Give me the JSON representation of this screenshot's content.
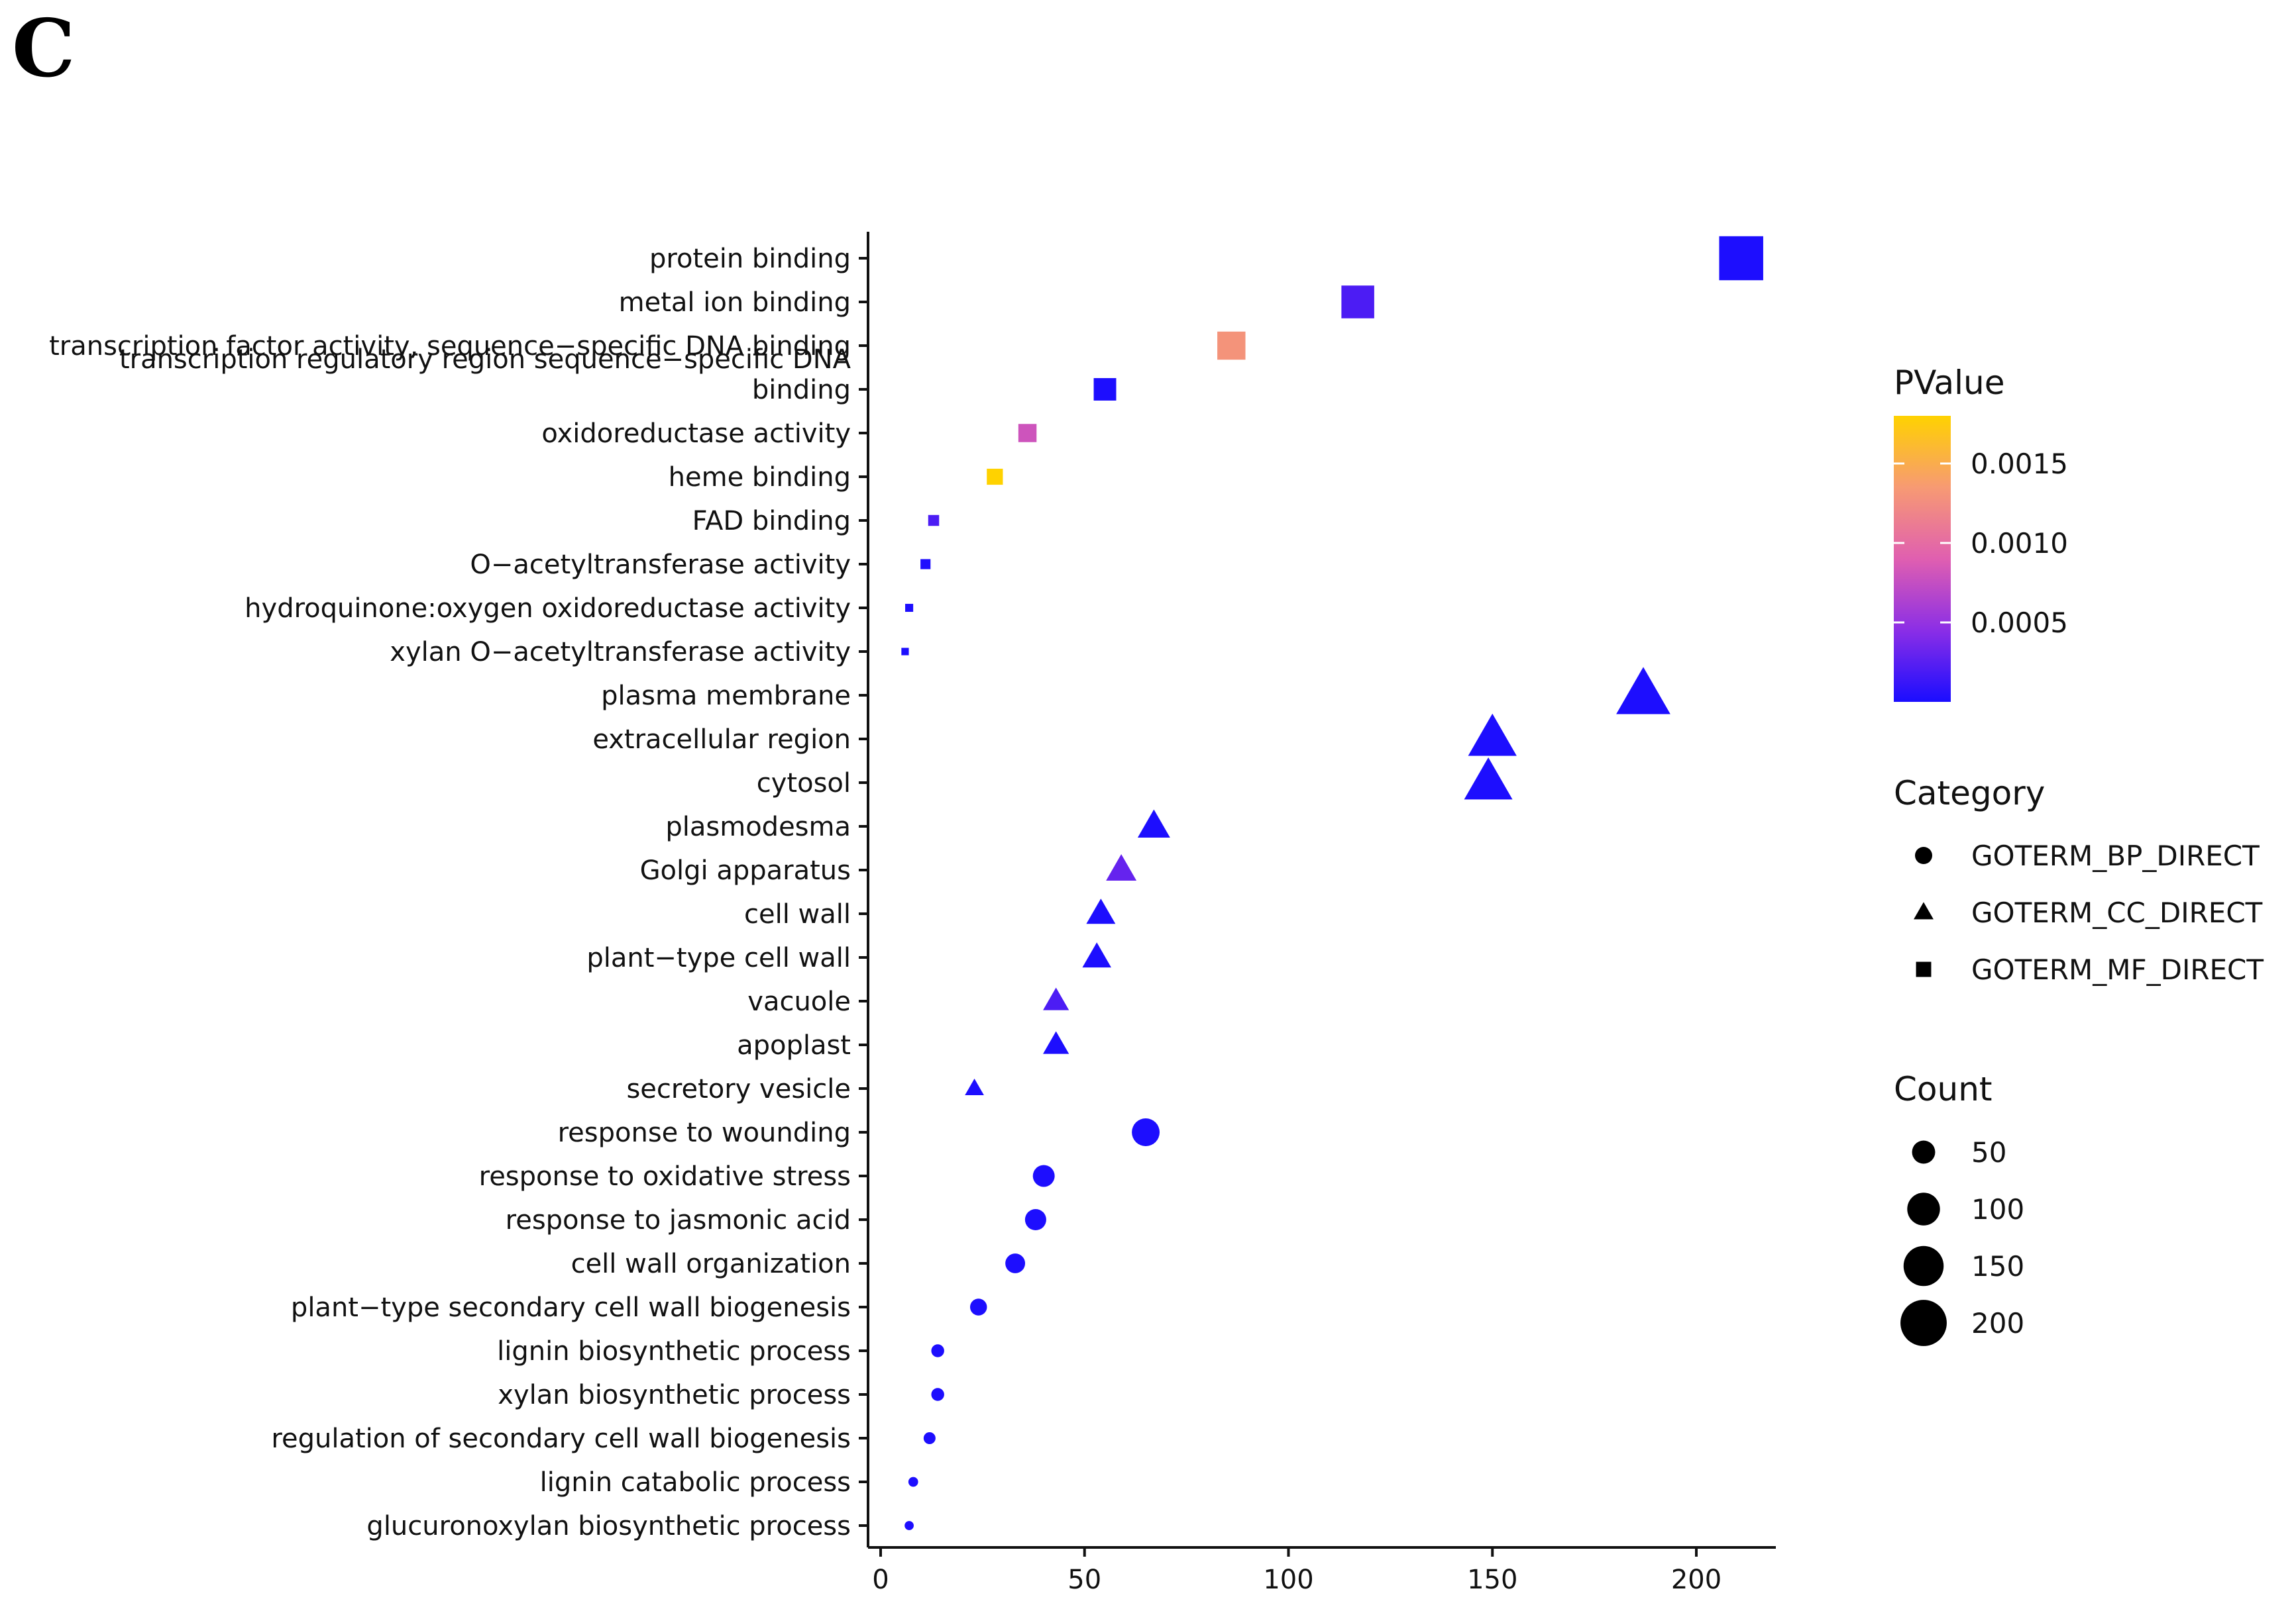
{
  "panel_label": "C",
  "chart_data": {
    "type": "scatter",
    "title": "",
    "xlabel": "",
    "ylabel": "",
    "xlim": [
      -2,
      220
    ],
    "xticks": [
      0,
      50,
      100,
      150,
      200
    ],
    "grid": false,
    "colorscale": {
      "title": "PValue",
      "min": 0,
      "max": 0.0018,
      "ticks": [
        0.0005,
        0.001,
        0.0015
      ],
      "tick_labels": [
        "0.0005",
        "0.0010",
        "0.0015"
      ],
      "colors": [
        "#1a0dff",
        "#8b2ee6",
        "#e05fb0",
        "#f79a73",
        "#ffd200"
      ]
    },
    "category_legend": {
      "title": "Category",
      "items": [
        {
          "label": "GOTERM_BP_DIRECT",
          "shape": "circle"
        },
        {
          "label": "GOTERM_CC_DIRECT",
          "shape": "triangle"
        },
        {
          "label": "GOTERM_MF_DIRECT",
          "shape": "square"
        }
      ]
    },
    "count_legend": {
      "title": "Count",
      "values": [
        50,
        100,
        150,
        200
      ],
      "labels": [
        "50",
        "100",
        "150",
        "200"
      ]
    },
    "points": [
      {
        "term": "protein binding",
        "count": 211,
        "pvalue": 1e-05,
        "category": "GOTERM_MF_DIRECT"
      },
      {
        "term": "metal ion binding",
        "count": 117,
        "pvalue": 0.0002,
        "category": "GOTERM_MF_DIRECT"
      },
      {
        "term": "transcription factor activity, sequence-specific DNA binding",
        "count": 86,
        "pvalue": 0.0013,
        "category": "GOTERM_MF_DIRECT"
      },
      {
        "term": "transcription regulatory region sequence-specific DNA\nbinding",
        "count": 55,
        "pvalue": 1e-05,
        "category": "GOTERM_MF_DIRECT"
      },
      {
        "term": "oxidoreductase activity",
        "count": 36,
        "pvalue": 0.0008,
        "category": "GOTERM_MF_DIRECT"
      },
      {
        "term": "heme binding",
        "count": 28,
        "pvalue": 0.0018,
        "category": "GOTERM_MF_DIRECT"
      },
      {
        "term": "FAD binding",
        "count": 13,
        "pvalue": 0.0002,
        "category": "GOTERM_MF_DIRECT"
      },
      {
        "term": "O-acetyltransferase activity",
        "count": 11,
        "pvalue": 2e-05,
        "category": "GOTERM_MF_DIRECT"
      },
      {
        "term": "hydroquinone:oxygen oxidoreductase activity",
        "count": 7,
        "pvalue": 1e-05,
        "category": "GOTERM_MF_DIRECT"
      },
      {
        "term": "xylan O-acetyltransferase activity",
        "count": 6,
        "pvalue": 1e-05,
        "category": "GOTERM_MF_DIRECT"
      },
      {
        "term": "plasma membrane",
        "count": 187,
        "pvalue": 1e-05,
        "category": "GOTERM_CC_DIRECT"
      },
      {
        "term": "extracellular region",
        "count": 150,
        "pvalue": 1e-05,
        "category": "GOTERM_CC_DIRECT"
      },
      {
        "term": "cytosol",
        "count": 149,
        "pvalue": 1e-05,
        "category": "GOTERM_CC_DIRECT"
      },
      {
        "term": "plasmodesma",
        "count": 67,
        "pvalue": 1e-05,
        "category": "GOTERM_CC_DIRECT"
      },
      {
        "term": "Golgi apparatus",
        "count": 59,
        "pvalue": 0.0003,
        "category": "GOTERM_CC_DIRECT"
      },
      {
        "term": "cell wall",
        "count": 54,
        "pvalue": 1e-05,
        "category": "GOTERM_CC_DIRECT"
      },
      {
        "term": "plant-type cell wall",
        "count": 53,
        "pvalue": 1e-05,
        "category": "GOTERM_CC_DIRECT"
      },
      {
        "term": "vacuole",
        "count": 43,
        "pvalue": 0.0002,
        "category": "GOTERM_CC_DIRECT"
      },
      {
        "term": "apoplast",
        "count": 43,
        "pvalue": 1e-05,
        "category": "GOTERM_CC_DIRECT"
      },
      {
        "term": "secretory vesicle",
        "count": 23,
        "pvalue": 1e-05,
        "category": "GOTERM_CC_DIRECT"
      },
      {
        "term": "response to wounding",
        "count": 65,
        "pvalue": 1e-05,
        "category": "GOTERM_BP_DIRECT"
      },
      {
        "term": "response to oxidative stress",
        "count": 40,
        "pvalue": 1e-05,
        "category": "GOTERM_BP_DIRECT"
      },
      {
        "term": "response to jasmonic acid",
        "count": 38,
        "pvalue": 1e-05,
        "category": "GOTERM_BP_DIRECT"
      },
      {
        "term": "cell wall organization",
        "count": 33,
        "pvalue": 1e-05,
        "category": "GOTERM_BP_DIRECT"
      },
      {
        "term": "plant-type secondary cell wall biogenesis",
        "count": 24,
        "pvalue": 1e-05,
        "category": "GOTERM_BP_DIRECT"
      },
      {
        "term": "lignin biosynthetic process",
        "count": 14,
        "pvalue": 1e-05,
        "category": "GOTERM_BP_DIRECT"
      },
      {
        "term": "xylan biosynthetic process",
        "count": 14,
        "pvalue": 1e-05,
        "category": "GOTERM_BP_DIRECT"
      },
      {
        "term": "regulation of secondary cell wall biogenesis",
        "count": 12,
        "pvalue": 1e-05,
        "category": "GOTERM_BP_DIRECT"
      },
      {
        "term": "lignin catabolic process",
        "count": 8,
        "pvalue": 1e-05,
        "category": "GOTERM_BP_DIRECT"
      },
      {
        "term": "glucuronoxylan biosynthetic process",
        "count": 7,
        "pvalue": 1e-05,
        "category": "GOTERM_BP_DIRECT"
      }
    ]
  }
}
